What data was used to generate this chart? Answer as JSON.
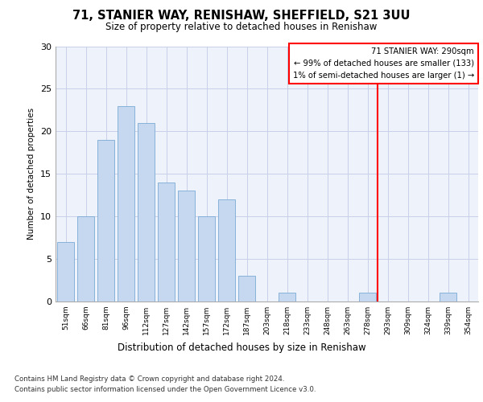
{
  "title": "71, STANIER WAY, RENISHAW, SHEFFIELD, S21 3UU",
  "subtitle": "Size of property relative to detached houses in Renishaw",
  "xlabel": "Distribution of detached houses by size in Renishaw",
  "ylabel": "Number of detached properties",
  "categories": [
    "51sqm",
    "66sqm",
    "81sqm",
    "96sqm",
    "112sqm",
    "127sqm",
    "142sqm",
    "157sqm",
    "172sqm",
    "187sqm",
    "203sqm",
    "218sqm",
    "233sqm",
    "248sqm",
    "263sqm",
    "278sqm",
    "293sqm",
    "309sqm",
    "324sqm",
    "339sqm",
    "354sqm"
  ],
  "values": [
    7,
    10,
    19,
    23,
    21,
    14,
    13,
    10,
    12,
    3,
    0,
    1,
    0,
    0,
    0,
    1,
    0,
    0,
    0,
    1,
    0
  ],
  "bar_color": "#c5d8f0",
  "bar_edge_color": "#7aaad4",
  "ylim": [
    0,
    30
  ],
  "yticks": [
    0,
    5,
    10,
    15,
    20,
    25,
    30
  ],
  "property_line_idx": 16,
  "property_label": "71 STANIER WAY: 290sqm",
  "annotation_line1": "← 99% of detached houses are smaller (133)",
  "annotation_line2": "1% of semi-detached houses are larger (1) →",
  "footer_line1": "Contains HM Land Registry data © Crown copyright and database right 2024.",
  "footer_line2": "Contains public sector information licensed under the Open Government Licence v3.0.",
  "bg_color": "#eef2fb",
  "grid_color": "#c8cfe8"
}
